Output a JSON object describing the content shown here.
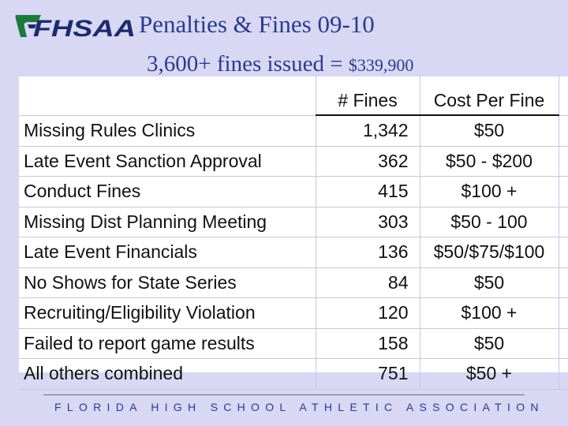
{
  "header": {
    "logo_text": "FHSAA",
    "title": "Penalties & Fines 09-10",
    "subtitle_prefix": "3,600+ fines issued = ",
    "subtitle_amount": "$339,900"
  },
  "table": {
    "columns": {
      "count": "# Fines",
      "cost": "Cost Per Fine"
    },
    "rows": [
      {
        "name": "Missing Rules Clinics",
        "count": "1,342",
        "cost": "$50"
      },
      {
        "name": "Late Event Sanction Approval",
        "count": "362",
        "cost": "$50 - $200"
      },
      {
        "name": "Conduct Fines",
        "count": "415",
        "cost": "$100 +"
      },
      {
        "name": "Missing Dist Planning Meeting",
        "count": "303",
        "cost": "$50 - 100"
      },
      {
        "name": "Late Event Financials",
        "count": "136",
        "cost": "$50/$75/$100"
      },
      {
        "name": "No Shows for State Series",
        "count": "84",
        "cost": "$50"
      },
      {
        "name": "Recruiting/Eligibility Violation",
        "count": "120",
        "cost": "$100 +"
      },
      {
        "name": "Failed to report game results",
        "count": "158",
        "cost": "$50"
      },
      {
        "name": "All others combined",
        "count": "751",
        "cost": "$50 +"
      }
    ]
  },
  "footer": {
    "text": "FLORIDA HIGH SCHOOL ATHLETIC ASSOCIATION"
  },
  "colors": {
    "background": "#d8d8f4",
    "title": "#2b3a8c",
    "logo_green": "#1e7a3c",
    "logo_navy": "#1c2b6b"
  }
}
